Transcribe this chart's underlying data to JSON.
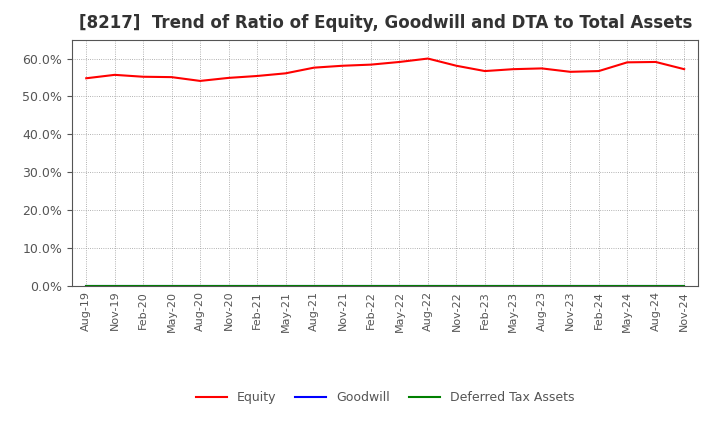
{
  "title": "[8217]  Trend of Ratio of Equity, Goodwill and DTA to Total Assets",
  "title_fontsize": 12,
  "title_color": "#333333",
  "background_color": "#ffffff",
  "plot_background_color": "#ffffff",
  "ylim": [
    0.0,
    0.65
  ],
  "yticks": [
    0.0,
    0.1,
    0.2,
    0.3,
    0.4,
    0.5,
    0.6
  ],
  "x_labels": [
    "Aug-19",
    "Nov-19",
    "Feb-20",
    "May-20",
    "Aug-20",
    "Nov-20",
    "Feb-21",
    "May-21",
    "Aug-21",
    "Nov-21",
    "Feb-22",
    "May-22",
    "Aug-22",
    "Nov-22",
    "Feb-23",
    "May-23",
    "Aug-23",
    "Nov-23",
    "Feb-24",
    "May-24",
    "Aug-24",
    "Nov-24"
  ],
  "equity": [
    0.548,
    0.557,
    0.552,
    0.551,
    0.541,
    0.549,
    0.554,
    0.561,
    0.576,
    0.581,
    0.584,
    0.591,
    0.6,
    0.581,
    0.567,
    0.572,
    0.574,
    0.565,
    0.567,
    0.59,
    0.591,
    0.572
  ],
  "goodwill": [
    0.0,
    0.0,
    0.0,
    0.0,
    0.0,
    0.0,
    0.0,
    0.0,
    0.0,
    0.0,
    0.0,
    0.0,
    0.0,
    0.0,
    0.0,
    0.0,
    0.0,
    0.0,
    0.0,
    0.0,
    0.0,
    0.0
  ],
  "dta": [
    0.0,
    0.0,
    0.0,
    0.0,
    0.0,
    0.0,
    0.0,
    0.0,
    0.0,
    0.0,
    0.0,
    0.0,
    0.0,
    0.0,
    0.0,
    0.0,
    0.0,
    0.0,
    0.0,
    0.0,
    0.0,
    0.0
  ],
  "equity_color": "#ff0000",
  "goodwill_color": "#0000ff",
  "dta_color": "#008000",
  "legend_labels": [
    "Equity",
    "Goodwill",
    "Deferred Tax Assets"
  ],
  "grid_color": "#999999",
  "grid_linestyle": "dotted",
  "tick_color": "#555555",
  "spine_color": "#555555"
}
